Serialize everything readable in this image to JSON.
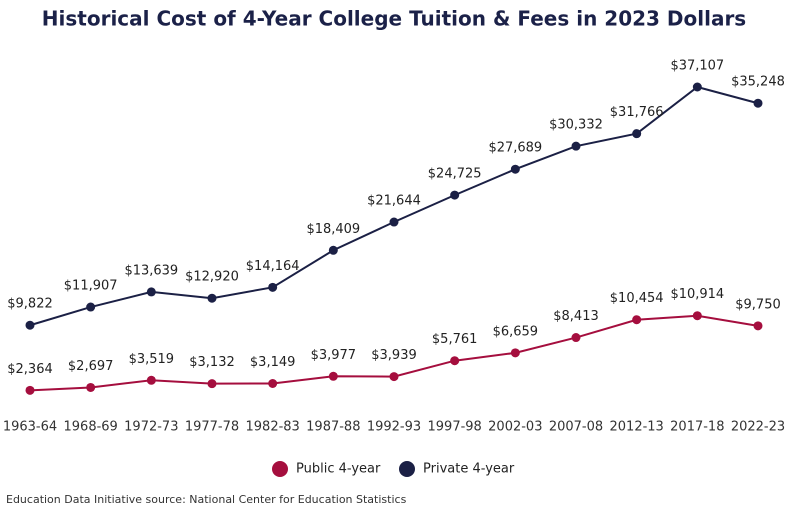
{
  "chart_data": {
    "type": "line",
    "title": "Historical Cost of 4-Year College Tuition & Fees in 2023 Dollars",
    "categories": [
      "1963-64",
      "1968-69",
      "1972-73",
      "1977-78",
      "1982-83",
      "1987-88",
      "1992-93",
      "1997-98",
      "2002-03",
      "2007-08",
      "2012-13",
      "2017-18",
      "2022-23"
    ],
    "series": [
      {
        "name": "Public 4-year",
        "color": "#a50e3e",
        "values": [
          2364,
          2697,
          3519,
          3132,
          3149,
          3977,
          3939,
          5761,
          6659,
          8413,
          10454,
          10914,
          9750
        ],
        "value_labels": [
          "$2,364",
          "$2,697",
          "$3,519",
          "$3,132",
          "$3,149",
          "$3,977",
          "$3,939",
          "$5,761",
          "$6,659",
          "$8,413",
          "$10,454",
          "$10,914",
          "$9,750"
        ]
      },
      {
        "name": "Private 4-year",
        "color": "#1b2045",
        "values": [
          9822,
          11907,
          13639,
          12920,
          14164,
          18409,
          21644,
          24725,
          27689,
          30332,
          31766,
          37107,
          35248
        ],
        "value_labels": [
          "$9,822",
          "$11,907",
          "$13,639",
          "$12,920",
          "$14,164",
          "$18,409",
          "$21,644",
          "$24,725",
          "$27,689",
          "$30,332",
          "$31,766",
          "$37,107",
          "$35,248"
        ]
      }
    ],
    "legend": "bottom",
    "source": "Education Data Initiative source: National Center for Education Statistics"
  }
}
